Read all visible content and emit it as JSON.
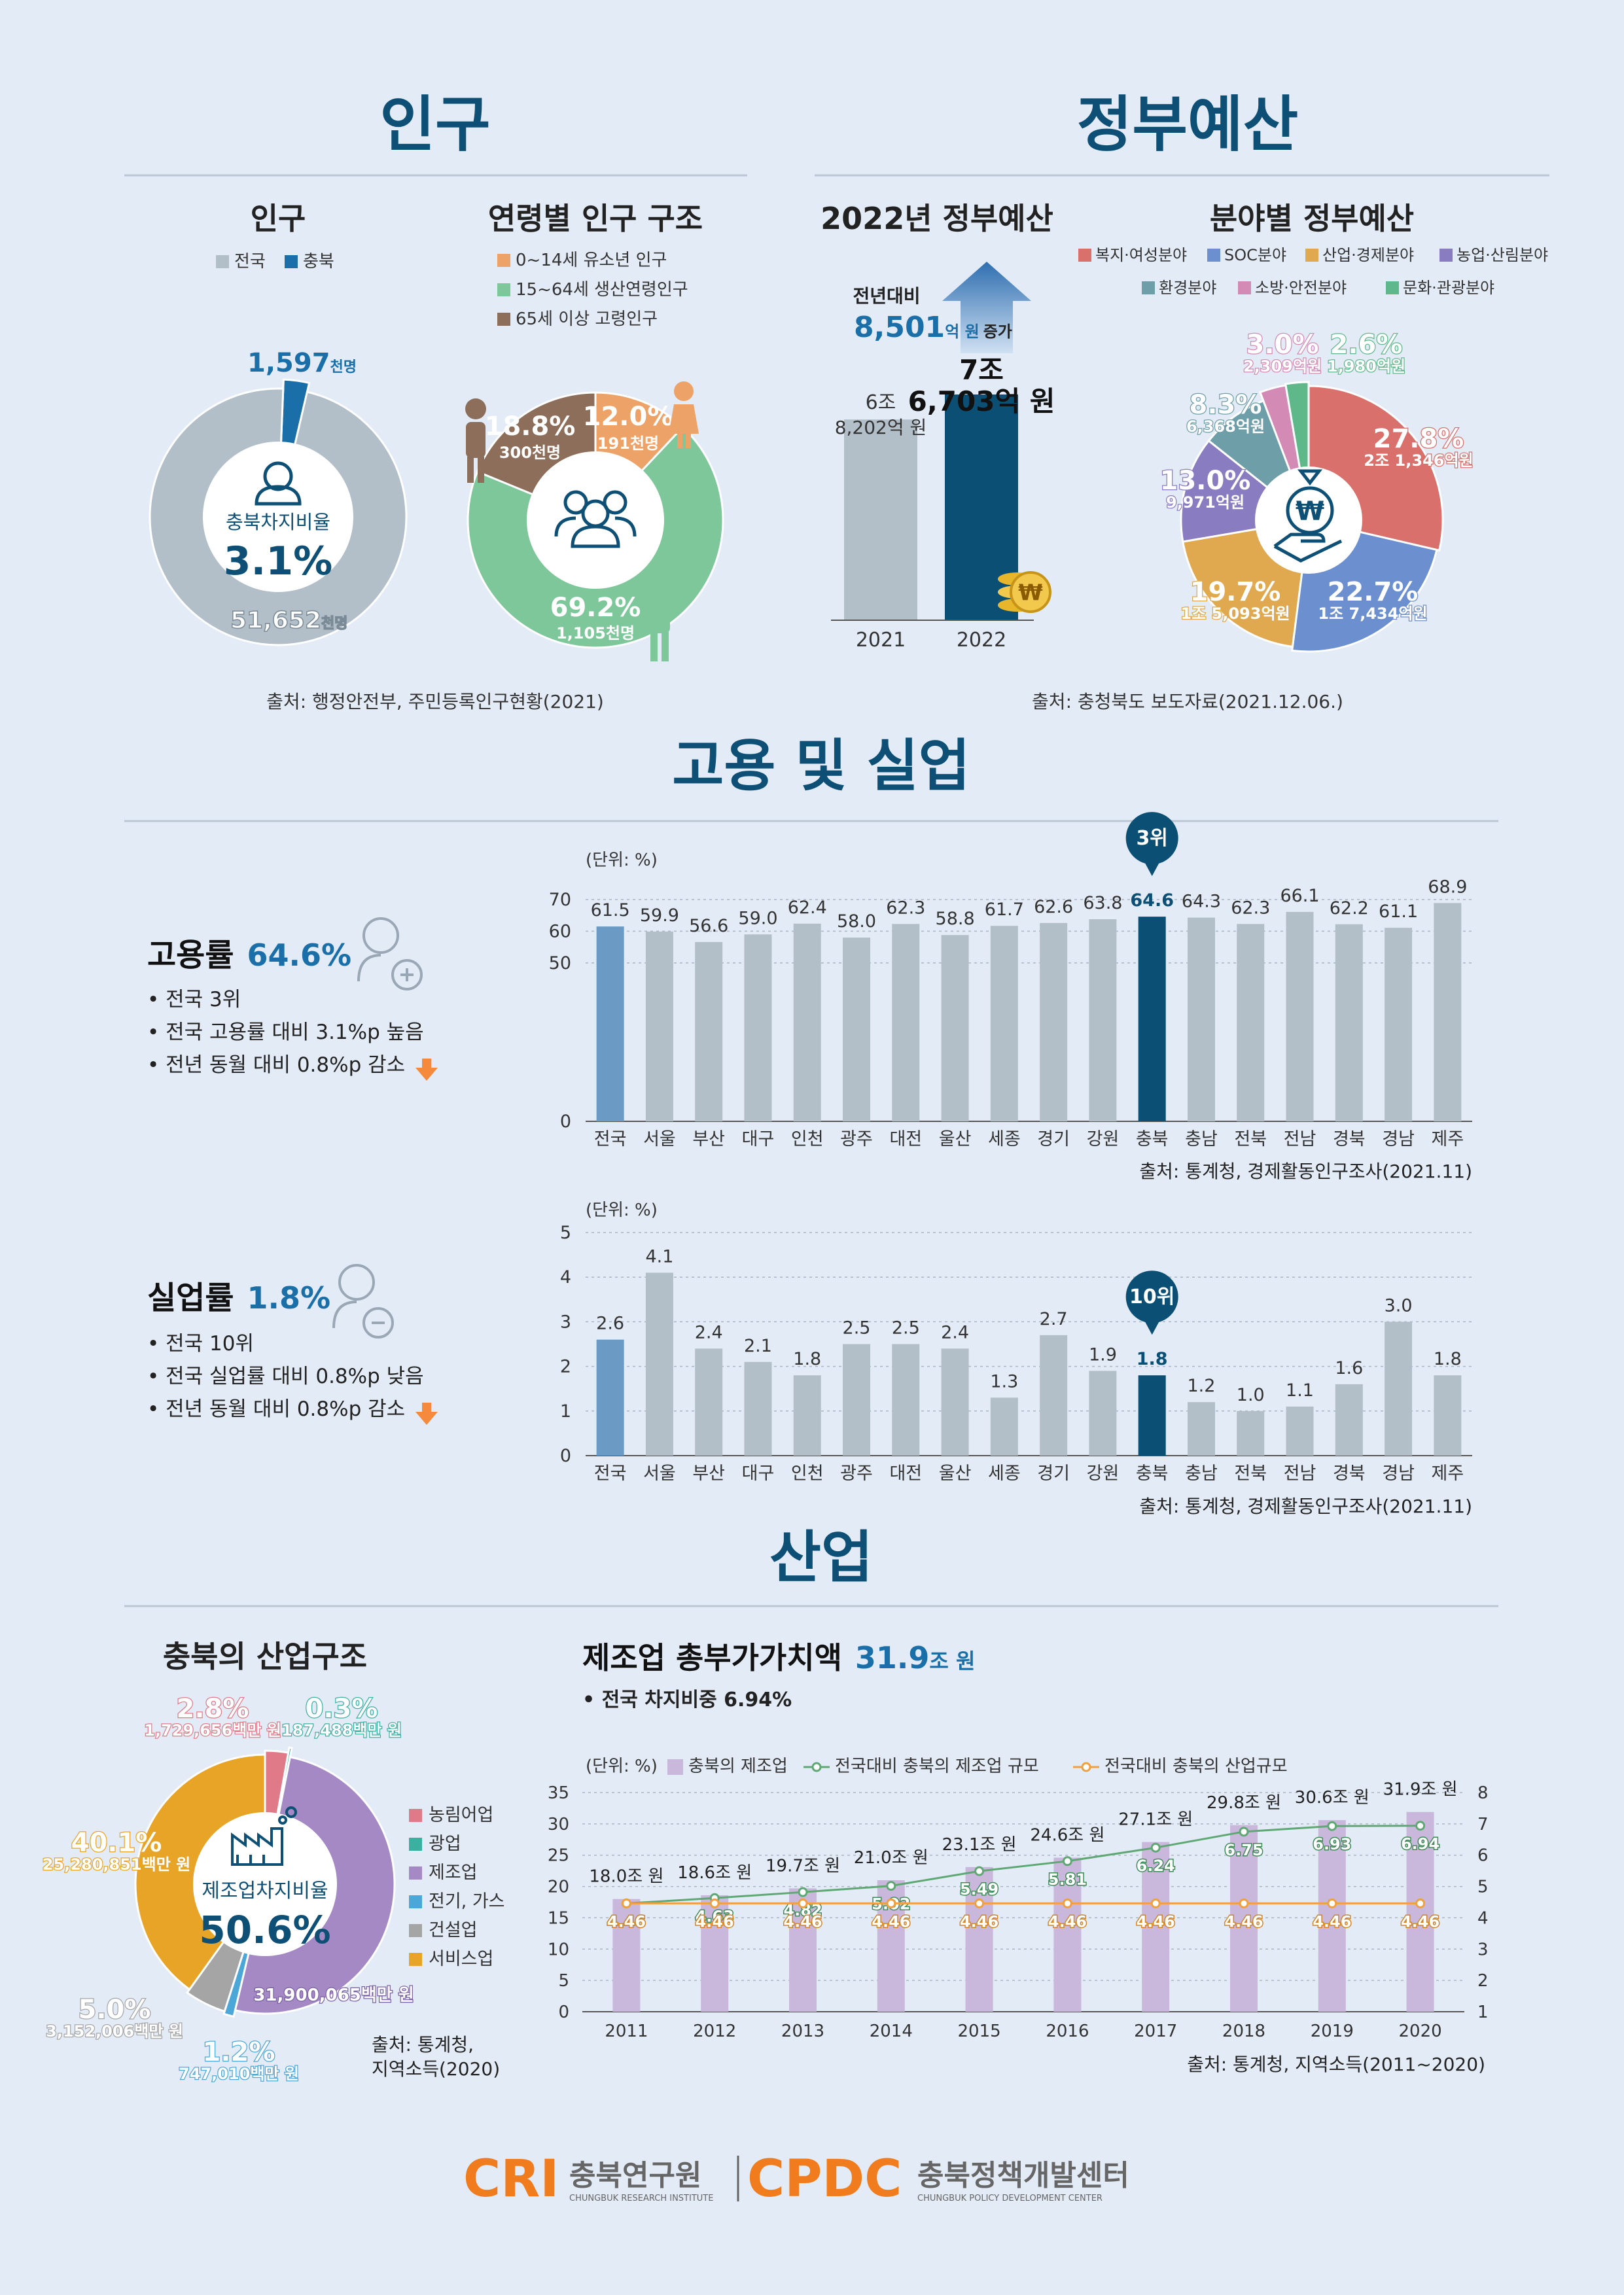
{
  "colors": {
    "teal": "#0d4f75",
    "accent": "#1a6fa8",
    "gray_bar": "#b3bfc8",
    "nat_bar": "#6b9bc4",
    "cb_bar": "#0b4f75",
    "orange": "#f58a3c",
    "green_line": "#5fa873",
    "purple": "#c9b8db"
  },
  "population": {
    "section_title": "인구",
    "donut_title": "인구",
    "legend": [
      "전국",
      "충북"
    ],
    "center_label": "충북차지비율",
    "center_value": "3.1%",
    "label_chungbuk": "1,597",
    "label_chungbuk_unit": "천명",
    "label_national": "51,652",
    "label_national_unit": "천명",
    "age_title": "연령별 인구 구조",
    "age_legend": [
      "0~14세 유소년 인구",
      "15~64세 생산연령인구",
      "65세 이상 고령인구"
    ],
    "age_pct": [
      "12.0%",
      "69.2%",
      "18.8%"
    ],
    "age_cnt": [
      "191천명",
      "1,105천명",
      "300천명"
    ],
    "source": "출처: 행정안전부, 주민등록인구현황(2021)"
  },
  "budget": {
    "section_title": "정부예산",
    "title": "2022년 정부예산",
    "increase_label": "전년대비",
    "increase_value": "8,501",
    "increase_unit": "억 원",
    "increase_suffix": "증가",
    "years": [
      "2021",
      "2022"
    ],
    "value_2021": [
      "6조",
      "8,202억 원"
    ],
    "value_2022": [
      "7조",
      "6,703억 원"
    ],
    "field_title": "분야별 정부예산",
    "field_legend": [
      "복지·여성분야",
      "SOC분야",
      "산업·경제분야",
      "농업·산림분야",
      "환경분야",
      "소방·안전분야",
      "문화·관광분야"
    ],
    "field_pct": [
      "27.8%",
      "22.7%",
      "19.7%",
      "13.0%",
      "8.3%",
      "3.0%",
      "2.6%"
    ],
    "field_amt": [
      "2조 1,346억원",
      "1조 7,434억원",
      "1조 5,093억원",
      "9,971억원",
      "6,368억원",
      "2,309억원",
      "1,980억원"
    ],
    "source": "출처: 충청북도 보도자료(2021.12.06.)"
  },
  "employment": {
    "section_title": "고용 및 실업",
    "emp_title": "고용률",
    "emp_value": "64.6%",
    "emp_bullets": [
      "전국 3위",
      "전국 고용률 대비 3.1%p 높음",
      "전년 동월 대비 0.8%p 감소"
    ],
    "emp_rank_badge": "3위",
    "unemp_title": "실업률",
    "unemp_value": "1.8%",
    "unemp_bullets": [
      "전국 10위",
      "전국 실업률 대비 0.8%p 낮음",
      "전년 동월 대비 0.8%p 감소"
    ],
    "unemp_rank_badge": "10위",
    "unit_label": "(단위: %)",
    "source": "출처: 통계청, 경제활동인구조사(2021.11)"
  },
  "industry": {
    "section_title": "산업",
    "structure_title": "충북의 산업구조",
    "center_label": "제조업차지비율",
    "center_value": "50.6%",
    "legend": [
      "농림어업",
      "광업",
      "제조업",
      "전기, 가스",
      "건설업",
      "서비스업"
    ],
    "pct_labels": [
      "2.8%",
      "0.3%",
      "31,900,065백만 원",
      "1.2%",
      "5.0%",
      "40.1%"
    ],
    "amt_labels": [
      "1,729,656백만 원",
      "187,488백만 원",
      "",
      "747,010백만 원",
      "3,152,006백만 원",
      "25,280,851백만 원"
    ],
    "source_lines": [
      "출처: 통계청,",
      "지역소득(2020)"
    ],
    "mfg_title": "제조업 총부가가치액",
    "mfg_value": "31.9",
    "mfg_unit": "조 원",
    "mfg_bullet": "전국 차지비중 6.94%",
    "unit_label": "(단위: %)",
    "mfg_legend": [
      "충북의 제조업",
      "전국대비 충북의 제조업 규모",
      "전국대비 충북의 산업규모"
    ],
    "mfg_source": "출처: 통계청, 지역소득(2011~2020)"
  },
  "footer": {
    "cri": "CRI",
    "cri_kr": "충북연구원",
    "cri_en": "CHUNGBUK RESEARCH INSTITUTE",
    "cpdc": "CPDC",
    "cpdc_kr": "충북정책개발센터",
    "cpdc_en": "CHUNGBUK POLICY DEVELOPMENT CENTER"
  },
  "chart_data": [
    {
      "type": "pie",
      "title": "인구",
      "labels": [
        "전국",
        "충북"
      ],
      "values": [
        51652,
        1597
      ],
      "unit": "천명"
    },
    {
      "type": "pie",
      "title": "연령별 인구 구조",
      "labels": [
        "0~14세 유소년 인구",
        "15~64세 생산연령인구",
        "65세 이상 고령인구"
      ],
      "values": [
        12.0,
        69.2,
        18.8
      ],
      "colors": [
        "#eda367",
        "#7ec79b",
        "#8c6e5a"
      ]
    },
    {
      "type": "bar",
      "title": "2022년 정부예산",
      "categories": [
        "2021",
        "2022"
      ],
      "values": [
        68202,
        76703
      ],
      "unit": "억 원"
    },
    {
      "type": "pie",
      "title": "분야별 정부예산",
      "labels": [
        "복지·여성분야",
        "SOC분야",
        "산업·경제분야",
        "농업·산림분야",
        "환경분야",
        "소방·안전분야",
        "문화·관광분야"
      ],
      "values": [
        27.8,
        22.7,
        19.7,
        13.0,
        8.3,
        3.0,
        2.6
      ],
      "colors": [
        "#d9706c",
        "#6b8fcf",
        "#e0a94f",
        "#8a7cc1",
        "#6e9ea8",
        "#d38ab5",
        "#5eb88a"
      ]
    },
    {
      "type": "bar",
      "title": "고용률",
      "ylim": [
        0,
        70
      ],
      "yticks": [
        0,
        50,
        60,
        70
      ],
      "categories": [
        "전국",
        "서울",
        "부산",
        "대구",
        "인천",
        "광주",
        "대전",
        "울산",
        "세종",
        "경기",
        "강원",
        "충북",
        "충남",
        "전북",
        "전남",
        "경북",
        "경남",
        "제주"
      ],
      "values": [
        61.5,
        59.9,
        56.6,
        59.0,
        62.4,
        58.0,
        62.3,
        58.8,
        61.7,
        62.6,
        63.8,
        64.6,
        64.3,
        62.3,
        66.1,
        62.2,
        61.1,
        68.9
      ]
    },
    {
      "type": "bar",
      "title": "실업률",
      "ylim": [
        0,
        5
      ],
      "yticks": [
        0,
        1,
        2,
        3,
        4,
        5
      ],
      "categories": [
        "전국",
        "서울",
        "부산",
        "대구",
        "인천",
        "광주",
        "대전",
        "울산",
        "세종",
        "경기",
        "강원",
        "충북",
        "충남",
        "전북",
        "전남",
        "경북",
        "경남",
        "제주"
      ],
      "values": [
        2.6,
        4.1,
        2.4,
        2.1,
        1.8,
        2.5,
        2.5,
        2.4,
        1.3,
        2.7,
        1.9,
        1.8,
        1.2,
        1.0,
        1.1,
        1.6,
        3.0,
        1.8
      ]
    },
    {
      "type": "pie",
      "title": "충북의 산업구조",
      "labels": [
        "농림어업",
        "광업",
        "제조업",
        "전기, 가스",
        "건설업",
        "서비스업"
      ],
      "values": [
        2.8,
        0.3,
        50.6,
        1.2,
        5.0,
        40.1
      ],
      "colors": [
        "#e07a88",
        "#3bb0a0",
        "#a489c4",
        "#4aa7d8",
        "#a5a5a5",
        "#e8a426"
      ]
    },
    {
      "type": "bar",
      "title": "제조업 총부가가치액",
      "x": [
        "2011",
        "2012",
        "2013",
        "2014",
        "2015",
        "2016",
        "2017",
        "2018",
        "2019",
        "2020"
      ],
      "bar_labels": [
        "18.0조 원",
        "18.6조 원",
        "19.7조 원",
        "21.0조 원",
        "23.1조 원",
        "24.6조 원",
        "27.1조 원",
        "29.8조 원",
        "30.6조 원",
        "31.9조 원"
      ],
      "series": [
        {
          "name": "충북의 제조업",
          "values": [
            18.0,
            18.6,
            19.7,
            21.0,
            23.1,
            24.6,
            27.1,
            29.8,
            30.6,
            31.9
          ],
          "axis": "left"
        },
        {
          "name": "전국대비 충북의 제조업 규모",
          "values": [
            4.46,
            4.63,
            4.82,
            5.02,
            5.49,
            5.81,
            6.24,
            6.75,
            6.93,
            6.94
          ],
          "axis": "right"
        },
        {
          "name": "전국대비 충북의 산업규모",
          "values": [
            4.46,
            4.46,
            4.46,
            4.46,
            4.46,
            4.46,
            4.46,
            4.46,
            4.46,
            4.46
          ],
          "axis": "right"
        }
      ],
      "ylim_left": [
        0,
        35
      ],
      "ylim_right": [
        1,
        8
      ]
    }
  ]
}
